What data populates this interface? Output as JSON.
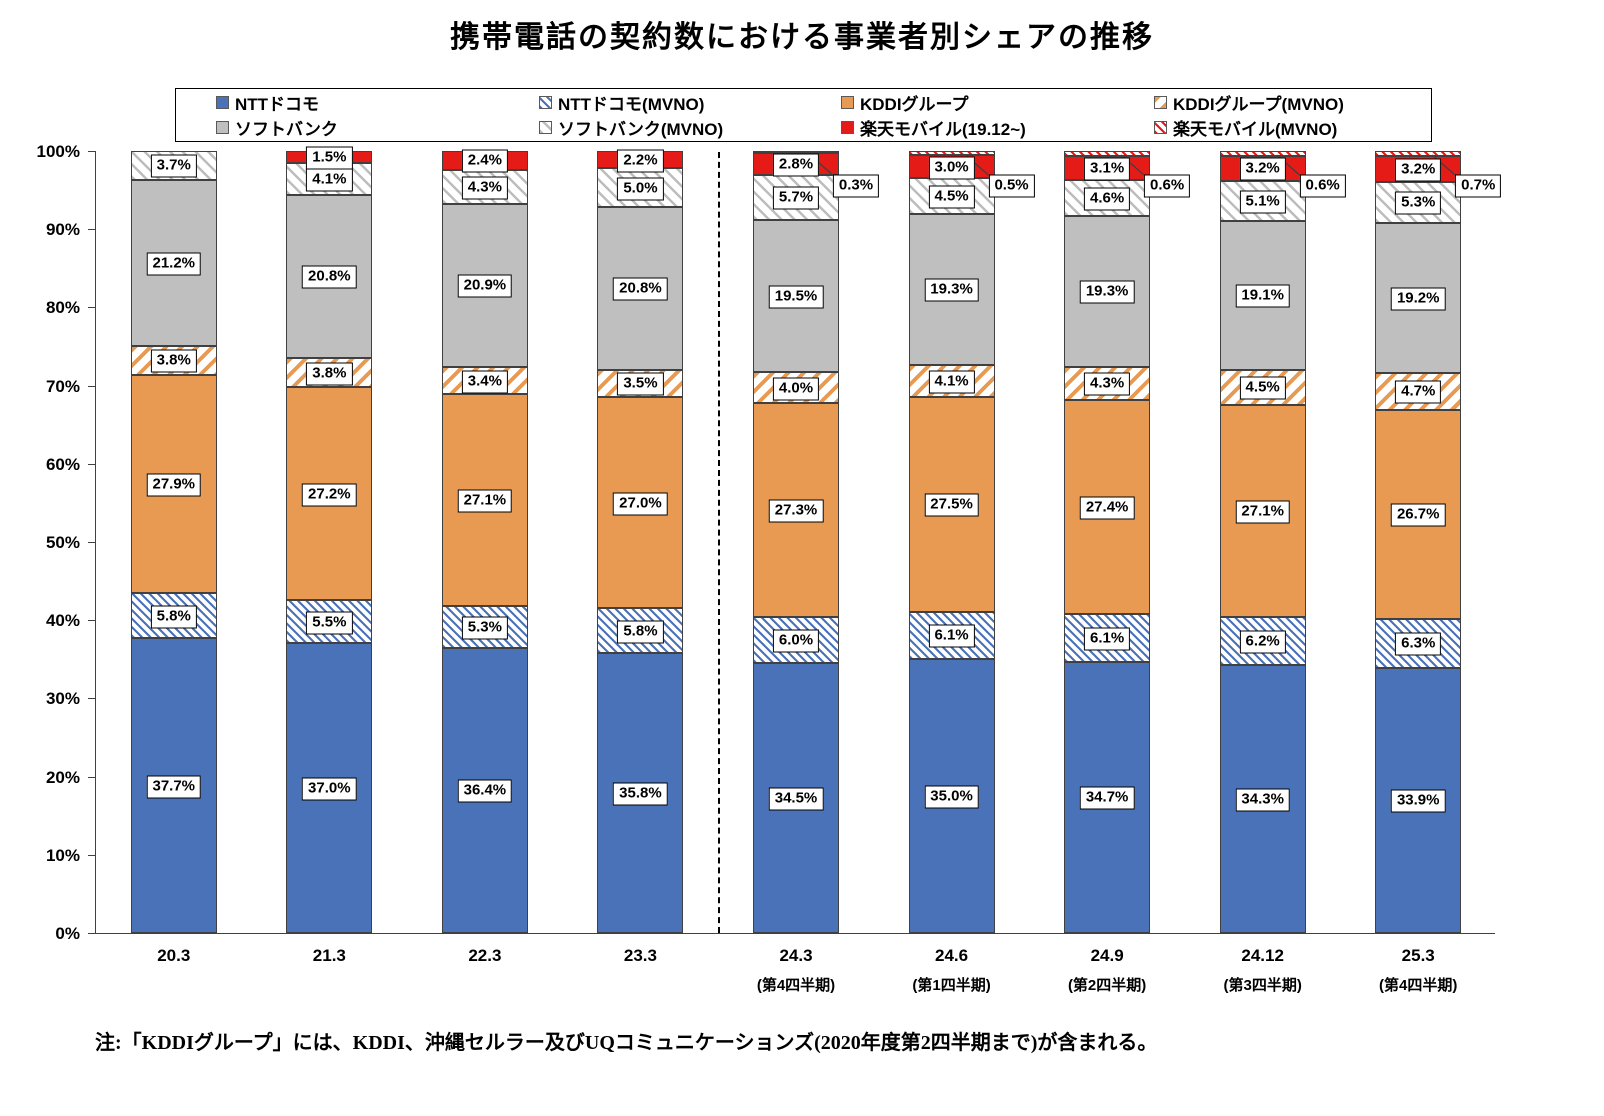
{
  "title": "携帯電話の契約数における事業者別シェアの推移",
  "note": "注:「KDDIグループ」には、KDDI、沖縄セルラー及びUQコミュニケーションズ(2020年度第2四半期まで)が含まれる。",
  "chart_data": {
    "type": "bar",
    "stacked": true,
    "title": "携帯電話の契約数における事業者別シェアの推移",
    "legend_position": "top",
    "grid": false,
    "y_axis": {
      "min": 0,
      "max": 100,
      "step": 10,
      "unit": "%",
      "tick_labels": [
        "0%",
        "10%",
        "20%",
        "30%",
        "40%",
        "50%",
        "60%",
        "70%",
        "80%",
        "90%",
        "100%"
      ]
    },
    "categories": [
      "20.3",
      "21.3",
      "22.3",
      "23.3",
      "24.3",
      "24.6",
      "24.9",
      "24.12",
      "25.3"
    ],
    "category_sublabels": [
      "",
      "",
      "",
      "",
      "(第4四半期)",
      "(第1四半期)",
      "(第2四半期)",
      "(第3四半期)",
      "(第4四半期)"
    ],
    "divider_after_category_index": 3,
    "series": [
      {
        "key": "docomo",
        "name": "NTTドコモ",
        "pattern": "solid",
        "color": "#4a72b8",
        "values": [
          37.7,
          37.0,
          36.4,
          35.8,
          34.5,
          35.0,
          34.7,
          34.3,
          33.9
        ]
      },
      {
        "key": "docomo_mvno",
        "name": "NTTドコモ(MVNO)",
        "pattern": "hatch",
        "color": "#4a72b8",
        "values": [
          5.8,
          5.5,
          5.3,
          5.8,
          6.0,
          6.1,
          6.1,
          6.2,
          6.3
        ]
      },
      {
        "key": "kddi",
        "name": "KDDIグループ",
        "pattern": "solid",
        "color": "#e99a52",
        "values": [
          27.9,
          27.2,
          27.1,
          27.0,
          27.3,
          27.5,
          27.4,
          27.1,
          26.7
        ]
      },
      {
        "key": "kddi_mvno",
        "name": "KDDIグループ(MVNO)",
        "pattern": "hatch",
        "color": "#e99a52",
        "values": [
          3.8,
          3.8,
          3.4,
          3.5,
          4.0,
          4.1,
          4.3,
          4.5,
          4.7
        ]
      },
      {
        "key": "softbank",
        "name": "ソフトバンク",
        "pattern": "solid",
        "color": "#bfbfbf",
        "values": [
          21.2,
          20.8,
          20.9,
          20.8,
          19.5,
          19.3,
          19.3,
          19.1,
          19.2
        ]
      },
      {
        "key": "softbank_mvno",
        "name": "ソフトバンク(MVNO)",
        "pattern": "hatch",
        "color": "#bdbdbd",
        "values": [
          3.7,
          4.1,
          4.3,
          5.0,
          5.7,
          4.5,
          4.6,
          5.1,
          5.3
        ]
      },
      {
        "key": "rakuten",
        "name": "楽天モバイル(19.12~)",
        "pattern": "solid",
        "color": "#e41b17",
        "values": [
          null,
          1.5,
          2.4,
          2.2,
          2.8,
          3.0,
          3.1,
          3.2,
          3.2
        ]
      },
      {
        "key": "rakuten_mvno",
        "name": "楽天モバイル(MVNO)",
        "pattern": "hatch",
        "color": "#e41b17",
        "values": [
          null,
          null,
          null,
          null,
          0.3,
          0.5,
          0.6,
          0.6,
          0.7
        ]
      }
    ]
  }
}
